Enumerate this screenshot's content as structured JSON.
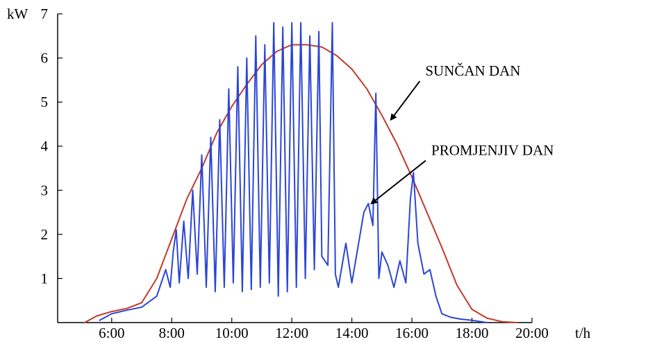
{
  "chart_data": {
    "type": "line",
    "title": "",
    "xlabel": "t/h",
    "ylabel": "kW",
    "xlim": [
      4.2,
      20.0
    ],
    "ylim": [
      0,
      7
    ],
    "grid": false,
    "legend": "none",
    "x_ticks": [
      {
        "value": 6,
        "label": "6:00"
      },
      {
        "value": 8,
        "label": "8:00"
      },
      {
        "value": 10,
        "label": "10:00"
      },
      {
        "value": 12,
        "label": "12:00"
      },
      {
        "value": 14,
        "label": "14:00"
      },
      {
        "value": 16,
        "label": "16:00"
      },
      {
        "value": 18,
        "label": "18:00"
      },
      {
        "value": 20,
        "label": "20:00"
      }
    ],
    "y_ticks": [
      {
        "value": 1,
        "label": "1"
      },
      {
        "value": 2,
        "label": "2"
      },
      {
        "value": 3,
        "label": "3"
      },
      {
        "value": 4,
        "label": "4"
      },
      {
        "value": 5,
        "label": "5"
      },
      {
        "value": 6,
        "label": "6"
      },
      {
        "value": 7,
        "label": "7"
      }
    ],
    "series": [
      {
        "color": "#c0392b",
        "x": [
          5.1,
          5.5,
          6.0,
          6.5,
          7.0,
          7.5,
          8.0,
          8.5,
          9.0,
          9.5,
          10.0,
          10.5,
          11.0,
          11.5,
          12.0,
          12.5,
          13.0,
          13.5,
          14.0,
          14.5,
          15.0,
          15.5,
          16.0,
          16.5,
          17.0,
          17.5,
          18.0,
          18.5,
          19.0,
          19.5
        ],
        "y": [
          0.0,
          0.15,
          0.25,
          0.32,
          0.45,
          1.0,
          1.9,
          2.8,
          3.5,
          4.3,
          4.9,
          5.4,
          5.85,
          6.15,
          6.3,
          6.3,
          6.25,
          6.05,
          5.75,
          5.3,
          4.7,
          4.05,
          3.3,
          2.5,
          1.7,
          0.85,
          0.3,
          0.1,
          0.02,
          0.0
        ]
      },
      {
        "color": "#2a45d6",
        "x": [
          5.6,
          6.0,
          6.5,
          7.0,
          7.5,
          7.8,
          7.95,
          8.05,
          8.15,
          8.25,
          8.4,
          8.55,
          8.7,
          8.85,
          9.0,
          9.15,
          9.3,
          9.45,
          9.6,
          9.75,
          9.9,
          10.05,
          10.2,
          10.35,
          10.5,
          10.65,
          10.8,
          10.95,
          11.1,
          11.25,
          11.4,
          11.55,
          11.7,
          11.85,
          12.0,
          12.15,
          12.3,
          12.45,
          12.6,
          12.75,
          12.9,
          13.0,
          13.2,
          13.35,
          13.45,
          13.55,
          13.8,
          14.0,
          14.2,
          14.4,
          14.55,
          14.7,
          14.8,
          14.9,
          15.0,
          15.2,
          15.4,
          15.6,
          15.8,
          15.95,
          16.05,
          16.2,
          16.4,
          16.6,
          16.8,
          17.0,
          17.3,
          17.6,
          18.0,
          18.5
        ],
        "y": [
          0.05,
          0.2,
          0.28,
          0.35,
          0.6,
          1.2,
          0.8,
          1.6,
          2.1,
          0.9,
          2.3,
          1.0,
          3.0,
          1.1,
          3.8,
          0.8,
          4.2,
          0.7,
          4.6,
          0.8,
          5.3,
          0.9,
          5.8,
          0.7,
          6.0,
          0.75,
          6.5,
          0.8,
          6.3,
          0.9,
          6.8,
          0.6,
          6.7,
          0.7,
          6.8,
          0.8,
          6.8,
          1.0,
          6.5,
          1.2,
          6.6,
          1.5,
          1.3,
          6.8,
          1.1,
          0.8,
          1.8,
          0.9,
          1.7,
          2.5,
          2.7,
          2.2,
          5.2,
          1.0,
          1.6,
          1.3,
          0.8,
          1.4,
          0.9,
          2.8,
          3.4,
          1.8,
          1.1,
          1.2,
          0.6,
          0.2,
          0.12,
          0.08,
          0.05,
          0.0
        ]
      }
    ],
    "annotations": [
      {
        "text": "SUNČAN DAN",
        "x_label": 16.4,
        "y_label": 5.6,
        "x_arrow": 15.3,
        "y_arrow": 4.6
      },
      {
        "text": "PROMJENJIV DAN",
        "x_label": 16.6,
        "y_label": 3.8,
        "x_arrow": 14.65,
        "y_arrow": 2.7
      }
    ]
  }
}
